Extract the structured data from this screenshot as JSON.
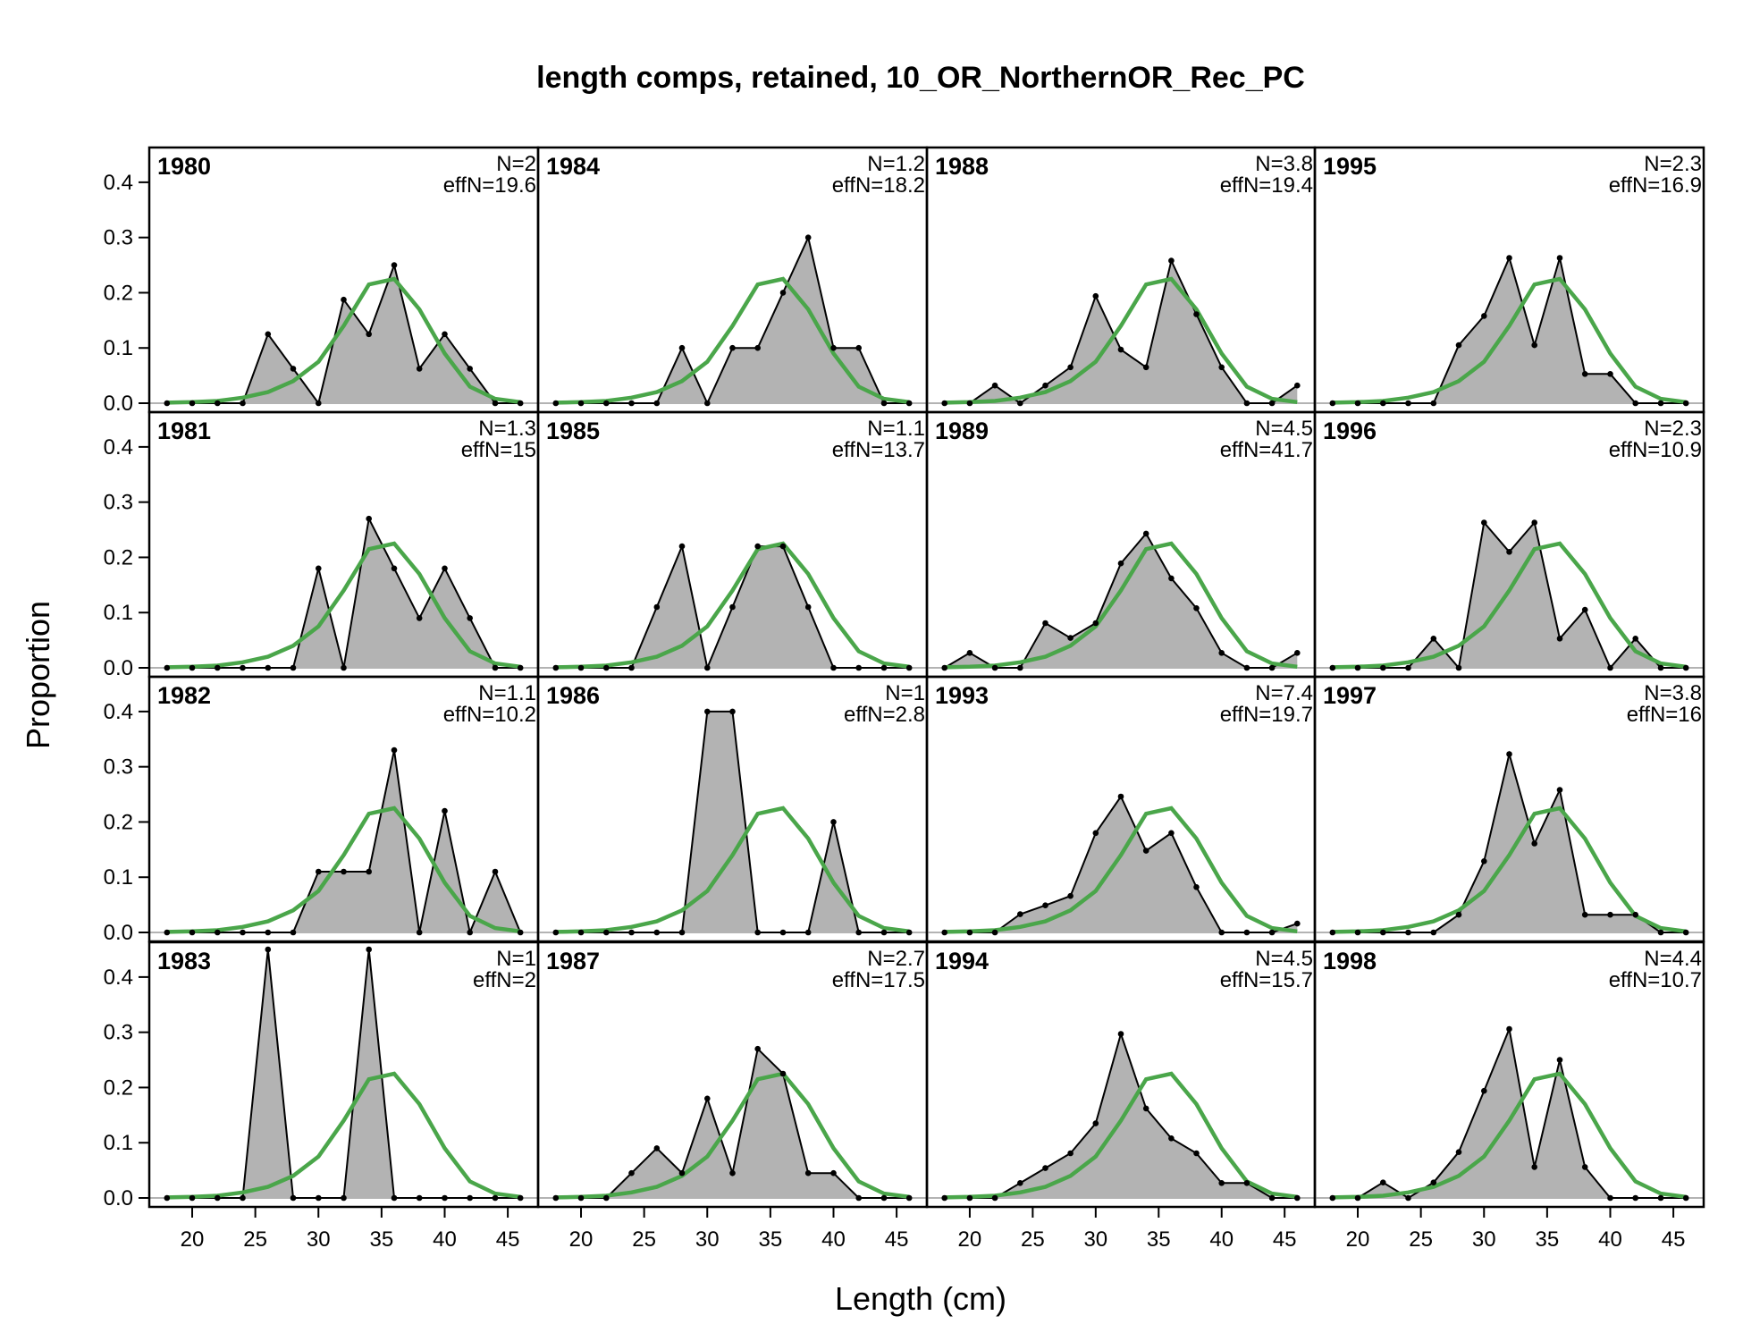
{
  "chart_data": {
    "type": "area",
    "title": "length comps, retained, 10_OR_NorthernOR_Rec_PC",
    "xlabel": "Length (cm)",
    "ylabel": "Proportion",
    "xlim": [
      18,
      46
    ],
    "ylim": [
      0,
      0.45
    ],
    "x_ticks": [
      20,
      25,
      30,
      35,
      40,
      45
    ],
    "y_ticks": [
      0.0,
      0.1,
      0.2,
      0.3,
      0.4
    ],
    "y_tick_labels": [
      "0.0",
      "0.1",
      "0.2",
      "0.3",
      "0.4"
    ],
    "x": [
      18,
      20,
      22,
      24,
      26,
      28,
      30,
      32,
      34,
      36,
      38,
      40,
      42,
      44,
      46
    ],
    "grid": false,
    "layout": "4x4 panels, column-major by year",
    "colors": {
      "observed_fill": "#b3b3b3",
      "observed_line": "#000000",
      "expected_line": "#4aa64a",
      "zero_line": "#b3b3b3"
    },
    "panels": [
      {
        "year": "1980",
        "n_label": "N=2",
        "effn_label": "effN=19.6",
        "observed": [
          0,
          0,
          0,
          0,
          0.125,
          0.0625,
          0,
          0.1875,
          0.125,
          0.25,
          0.0625,
          0.125,
          0.0625,
          0,
          0
        ],
        "expected": [
          0.001,
          0.002,
          0.004,
          0.01,
          0.02,
          0.04,
          0.075,
          0.14,
          0.215,
          0.225,
          0.17,
          0.09,
          0.03,
          0.008,
          0.002
        ]
      },
      {
        "year": "1981",
        "n_label": "N=1.3",
        "effn_label": "effN=15",
        "observed": [
          0,
          0,
          0,
          0,
          0,
          0,
          0.18,
          0,
          0.27,
          0.18,
          0.09,
          0.18,
          0.09,
          0,
          0
        ],
        "expected": [
          0.001,
          0.002,
          0.004,
          0.01,
          0.02,
          0.04,
          0.075,
          0.14,
          0.215,
          0.225,
          0.17,
          0.09,
          0.03,
          0.008,
          0.002
        ]
      },
      {
        "year": "1982",
        "n_label": "N=1.1",
        "effn_label": "effN=10.2",
        "observed": [
          0,
          0,
          0,
          0,
          0,
          0,
          0.11,
          0.11,
          0.11,
          0.33,
          0,
          0.22,
          0,
          0.11,
          0
        ],
        "expected": [
          0.001,
          0.002,
          0.004,
          0.01,
          0.02,
          0.04,
          0.075,
          0.14,
          0.215,
          0.225,
          0.17,
          0.09,
          0.03,
          0.008,
          0.002
        ]
      },
      {
        "year": "1983",
        "n_label": "N=1",
        "effn_label": "effN=2",
        "observed": [
          0,
          0,
          0,
          0,
          0.5,
          0,
          0,
          0,
          0.5,
          0,
          0,
          0,
          0,
          0,
          0
        ],
        "expected": [
          0.001,
          0.002,
          0.004,
          0.01,
          0.02,
          0.04,
          0.075,
          0.14,
          0.215,
          0.225,
          0.17,
          0.09,
          0.03,
          0.008,
          0.002
        ]
      },
      {
        "year": "1984",
        "n_label": "N=1.2",
        "effn_label": "effN=18.2",
        "observed": [
          0,
          0,
          0,
          0,
          0,
          0.1,
          0,
          0.1,
          0.1,
          0.2,
          0.3,
          0.1,
          0.1,
          0,
          0
        ],
        "expected": [
          0.001,
          0.002,
          0.004,
          0.01,
          0.02,
          0.04,
          0.075,
          0.14,
          0.215,
          0.225,
          0.17,
          0.09,
          0.03,
          0.008,
          0.002
        ]
      },
      {
        "year": "1985",
        "n_label": "N=1.1",
        "effn_label": "effN=13.7",
        "observed": [
          0,
          0,
          0,
          0,
          0.11,
          0.22,
          0,
          0.11,
          0.22,
          0.22,
          0.11,
          0,
          0,
          0,
          0
        ],
        "expected": [
          0.001,
          0.002,
          0.004,
          0.01,
          0.02,
          0.04,
          0.075,
          0.14,
          0.215,
          0.225,
          0.17,
          0.09,
          0.03,
          0.008,
          0.002
        ]
      },
      {
        "year": "1986",
        "n_label": "N=1",
        "effn_label": "effN=2.8",
        "observed": [
          0,
          0,
          0,
          0,
          0,
          0,
          0.4,
          0.4,
          0,
          0,
          0,
          0.2,
          0,
          0,
          0
        ],
        "expected": [
          0.001,
          0.002,
          0.004,
          0.01,
          0.02,
          0.04,
          0.075,
          0.14,
          0.215,
          0.225,
          0.17,
          0.09,
          0.03,
          0.008,
          0.002
        ]
      },
      {
        "year": "1987",
        "n_label": "N=2.7",
        "effn_label": "effN=17.5",
        "observed": [
          0,
          0,
          0,
          0.045,
          0.09,
          0.045,
          0.18,
          0.045,
          0.27,
          0.225,
          0.045,
          0.045,
          0,
          0,
          0
        ],
        "expected": [
          0.001,
          0.002,
          0.004,
          0.01,
          0.02,
          0.04,
          0.075,
          0.14,
          0.215,
          0.225,
          0.17,
          0.09,
          0.03,
          0.008,
          0.002
        ]
      },
      {
        "year": "1988",
        "n_label": "N=3.8",
        "effn_label": "effN=19.4",
        "observed": [
          0,
          0,
          0.032,
          0,
          0.032,
          0.065,
          0.194,
          0.097,
          0.065,
          0.258,
          0.161,
          0.065,
          0,
          0,
          0.032
        ],
        "expected": [
          0.001,
          0.002,
          0.004,
          0.01,
          0.02,
          0.04,
          0.075,
          0.14,
          0.215,
          0.225,
          0.17,
          0.09,
          0.03,
          0.008,
          0.002
        ]
      },
      {
        "year": "1989",
        "n_label": "N=4.5",
        "effn_label": "effN=41.7",
        "observed": [
          0,
          0.027,
          0,
          0,
          0.081,
          0.054,
          0.081,
          0.189,
          0.243,
          0.162,
          0.108,
          0.027,
          0,
          0,
          0.027
        ],
        "expected": [
          0.001,
          0.002,
          0.004,
          0.01,
          0.02,
          0.04,
          0.075,
          0.14,
          0.215,
          0.225,
          0.17,
          0.09,
          0.03,
          0.008,
          0.002
        ]
      },
      {
        "year": "1993",
        "n_label": "N=7.4",
        "effn_label": "effN=19.7",
        "observed": [
          0,
          0,
          0,
          0.033,
          0.049,
          0.066,
          0.18,
          0.246,
          0.148,
          0.18,
          0.082,
          0,
          0,
          0,
          0.016
        ],
        "expected": [
          0.001,
          0.002,
          0.004,
          0.01,
          0.02,
          0.04,
          0.075,
          0.14,
          0.215,
          0.225,
          0.17,
          0.09,
          0.03,
          0.008,
          0.002
        ]
      },
      {
        "year": "1994",
        "n_label": "N=4.5",
        "effn_label": "effN=15.7",
        "observed": [
          0,
          0,
          0,
          0.027,
          0.054,
          0.081,
          0.135,
          0.297,
          0.162,
          0.108,
          0.081,
          0.027,
          0.027,
          0,
          0
        ],
        "expected": [
          0.001,
          0.002,
          0.004,
          0.01,
          0.02,
          0.04,
          0.075,
          0.14,
          0.215,
          0.225,
          0.17,
          0.09,
          0.03,
          0.008,
          0.002
        ]
      },
      {
        "year": "1995",
        "n_label": "N=2.3",
        "effn_label": "effN=16.9",
        "observed": [
          0,
          0,
          0,
          0,
          0,
          0.105,
          0.158,
          0.263,
          0.105,
          0.263,
          0.053,
          0.053,
          0,
          0,
          0
        ],
        "expected": [
          0.001,
          0.002,
          0.004,
          0.01,
          0.02,
          0.04,
          0.075,
          0.14,
          0.215,
          0.225,
          0.17,
          0.09,
          0.03,
          0.008,
          0.002
        ]
      },
      {
        "year": "1996",
        "n_label": "N=2.3",
        "effn_label": "effN=10.9",
        "observed": [
          0,
          0,
          0,
          0,
          0.053,
          0,
          0.263,
          0.21,
          0.263,
          0.053,
          0.105,
          0,
          0.053,
          0,
          0
        ],
        "expected": [
          0.001,
          0.002,
          0.004,
          0.01,
          0.02,
          0.04,
          0.075,
          0.14,
          0.215,
          0.225,
          0.17,
          0.09,
          0.03,
          0.008,
          0.002
        ]
      },
      {
        "year": "1997",
        "n_label": "N=3.8",
        "effn_label": "effN=16",
        "observed": [
          0,
          0,
          0,
          0,
          0,
          0.032,
          0.129,
          0.323,
          0.161,
          0.258,
          0.032,
          0.032,
          0.032,
          0,
          0
        ],
        "expected": [
          0.001,
          0.002,
          0.004,
          0.01,
          0.02,
          0.04,
          0.075,
          0.14,
          0.215,
          0.225,
          0.17,
          0.09,
          0.03,
          0.008,
          0.002
        ]
      },
      {
        "year": "1998",
        "n_label": "N=4.4",
        "effn_label": "effN=10.7",
        "observed": [
          0,
          0,
          0.028,
          0,
          0.028,
          0.083,
          0.194,
          0.306,
          0.056,
          0.25,
          0.056,
          0,
          0,
          0,
          0
        ],
        "expected": [
          0.001,
          0.002,
          0.004,
          0.01,
          0.02,
          0.04,
          0.075,
          0.14,
          0.215,
          0.225,
          0.17,
          0.09,
          0.03,
          0.008,
          0.002
        ]
      }
    ]
  }
}
